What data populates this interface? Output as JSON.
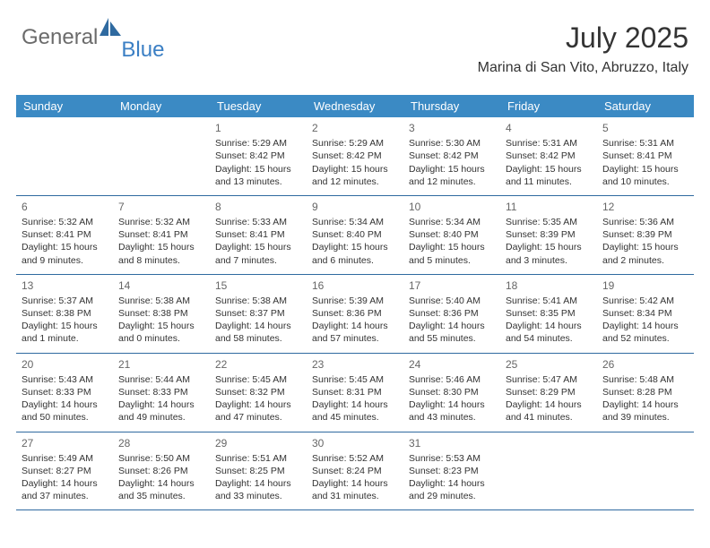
{
  "logo": {
    "general": "General",
    "blue": "Blue"
  },
  "colors": {
    "header_bg": "#3b8ac4",
    "header_text": "#ffffff",
    "row_border": "#2f6aa0",
    "text": "#333333",
    "daynum": "#666666",
    "logo_gray": "#6b6b6b",
    "logo_blue": "#3b7fc4"
  },
  "title": "July 2025",
  "location": "Marina di San Vito, Abruzzo, Italy",
  "days_of_week": [
    "Sunday",
    "Monday",
    "Tuesday",
    "Wednesday",
    "Thursday",
    "Friday",
    "Saturday"
  ],
  "weeks": [
    [
      {
        "empty": true
      },
      {
        "empty": true
      },
      {
        "n": "1",
        "sr": "Sunrise: 5:29 AM",
        "ss": "Sunset: 8:42 PM",
        "d1": "Daylight: 15 hours",
        "d2": "and 13 minutes."
      },
      {
        "n": "2",
        "sr": "Sunrise: 5:29 AM",
        "ss": "Sunset: 8:42 PM",
        "d1": "Daylight: 15 hours",
        "d2": "and 12 minutes."
      },
      {
        "n": "3",
        "sr": "Sunrise: 5:30 AM",
        "ss": "Sunset: 8:42 PM",
        "d1": "Daylight: 15 hours",
        "d2": "and 12 minutes."
      },
      {
        "n": "4",
        "sr": "Sunrise: 5:31 AM",
        "ss": "Sunset: 8:42 PM",
        "d1": "Daylight: 15 hours",
        "d2": "and 11 minutes."
      },
      {
        "n": "5",
        "sr": "Sunrise: 5:31 AM",
        "ss": "Sunset: 8:41 PM",
        "d1": "Daylight: 15 hours",
        "d2": "and 10 minutes."
      }
    ],
    [
      {
        "n": "6",
        "sr": "Sunrise: 5:32 AM",
        "ss": "Sunset: 8:41 PM",
        "d1": "Daylight: 15 hours",
        "d2": "and 9 minutes."
      },
      {
        "n": "7",
        "sr": "Sunrise: 5:32 AM",
        "ss": "Sunset: 8:41 PM",
        "d1": "Daylight: 15 hours",
        "d2": "and 8 minutes."
      },
      {
        "n": "8",
        "sr": "Sunrise: 5:33 AM",
        "ss": "Sunset: 8:41 PM",
        "d1": "Daylight: 15 hours",
        "d2": "and 7 minutes."
      },
      {
        "n": "9",
        "sr": "Sunrise: 5:34 AM",
        "ss": "Sunset: 8:40 PM",
        "d1": "Daylight: 15 hours",
        "d2": "and 6 minutes."
      },
      {
        "n": "10",
        "sr": "Sunrise: 5:34 AM",
        "ss": "Sunset: 8:40 PM",
        "d1": "Daylight: 15 hours",
        "d2": "and 5 minutes."
      },
      {
        "n": "11",
        "sr": "Sunrise: 5:35 AM",
        "ss": "Sunset: 8:39 PM",
        "d1": "Daylight: 15 hours",
        "d2": "and 3 minutes."
      },
      {
        "n": "12",
        "sr": "Sunrise: 5:36 AM",
        "ss": "Sunset: 8:39 PM",
        "d1": "Daylight: 15 hours",
        "d2": "and 2 minutes."
      }
    ],
    [
      {
        "n": "13",
        "sr": "Sunrise: 5:37 AM",
        "ss": "Sunset: 8:38 PM",
        "d1": "Daylight: 15 hours",
        "d2": "and 1 minute."
      },
      {
        "n": "14",
        "sr": "Sunrise: 5:38 AM",
        "ss": "Sunset: 8:38 PM",
        "d1": "Daylight: 15 hours",
        "d2": "and 0 minutes."
      },
      {
        "n": "15",
        "sr": "Sunrise: 5:38 AM",
        "ss": "Sunset: 8:37 PM",
        "d1": "Daylight: 14 hours",
        "d2": "and 58 minutes."
      },
      {
        "n": "16",
        "sr": "Sunrise: 5:39 AM",
        "ss": "Sunset: 8:36 PM",
        "d1": "Daylight: 14 hours",
        "d2": "and 57 minutes."
      },
      {
        "n": "17",
        "sr": "Sunrise: 5:40 AM",
        "ss": "Sunset: 8:36 PM",
        "d1": "Daylight: 14 hours",
        "d2": "and 55 minutes."
      },
      {
        "n": "18",
        "sr": "Sunrise: 5:41 AM",
        "ss": "Sunset: 8:35 PM",
        "d1": "Daylight: 14 hours",
        "d2": "and 54 minutes."
      },
      {
        "n": "19",
        "sr": "Sunrise: 5:42 AM",
        "ss": "Sunset: 8:34 PM",
        "d1": "Daylight: 14 hours",
        "d2": "and 52 minutes."
      }
    ],
    [
      {
        "n": "20",
        "sr": "Sunrise: 5:43 AM",
        "ss": "Sunset: 8:33 PM",
        "d1": "Daylight: 14 hours",
        "d2": "and 50 minutes."
      },
      {
        "n": "21",
        "sr": "Sunrise: 5:44 AM",
        "ss": "Sunset: 8:33 PM",
        "d1": "Daylight: 14 hours",
        "d2": "and 49 minutes."
      },
      {
        "n": "22",
        "sr": "Sunrise: 5:45 AM",
        "ss": "Sunset: 8:32 PM",
        "d1": "Daylight: 14 hours",
        "d2": "and 47 minutes."
      },
      {
        "n": "23",
        "sr": "Sunrise: 5:45 AM",
        "ss": "Sunset: 8:31 PM",
        "d1": "Daylight: 14 hours",
        "d2": "and 45 minutes."
      },
      {
        "n": "24",
        "sr": "Sunrise: 5:46 AM",
        "ss": "Sunset: 8:30 PM",
        "d1": "Daylight: 14 hours",
        "d2": "and 43 minutes."
      },
      {
        "n": "25",
        "sr": "Sunrise: 5:47 AM",
        "ss": "Sunset: 8:29 PM",
        "d1": "Daylight: 14 hours",
        "d2": "and 41 minutes."
      },
      {
        "n": "26",
        "sr": "Sunrise: 5:48 AM",
        "ss": "Sunset: 8:28 PM",
        "d1": "Daylight: 14 hours",
        "d2": "and 39 minutes."
      }
    ],
    [
      {
        "n": "27",
        "sr": "Sunrise: 5:49 AM",
        "ss": "Sunset: 8:27 PM",
        "d1": "Daylight: 14 hours",
        "d2": "and 37 minutes."
      },
      {
        "n": "28",
        "sr": "Sunrise: 5:50 AM",
        "ss": "Sunset: 8:26 PM",
        "d1": "Daylight: 14 hours",
        "d2": "and 35 minutes."
      },
      {
        "n": "29",
        "sr": "Sunrise: 5:51 AM",
        "ss": "Sunset: 8:25 PM",
        "d1": "Daylight: 14 hours",
        "d2": "and 33 minutes."
      },
      {
        "n": "30",
        "sr": "Sunrise: 5:52 AM",
        "ss": "Sunset: 8:24 PM",
        "d1": "Daylight: 14 hours",
        "d2": "and 31 minutes."
      },
      {
        "n": "31",
        "sr": "Sunrise: 5:53 AM",
        "ss": "Sunset: 8:23 PM",
        "d1": "Daylight: 14 hours",
        "d2": "and 29 minutes."
      },
      {
        "empty": true
      },
      {
        "empty": true
      }
    ]
  ]
}
